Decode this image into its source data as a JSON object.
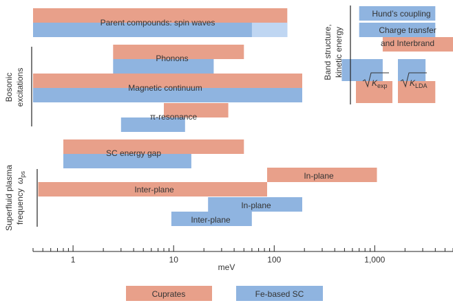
{
  "chart_data": {
    "type": "bar",
    "orientation": "horizontal-range",
    "x_scale": "log",
    "xlabel": "meV",
    "xlim": [
      0.4,
      6000
    ],
    "x_ticks": [
      "1",
      "10",
      "100",
      "1,000"
    ],
    "legend": [
      "Cuprates",
      "Fe-based SC"
    ],
    "colors": {
      "cuprates": "#E8A08A",
      "fe": "#8FB4E0",
      "fe_light": "#BFD6F2"
    },
    "group_labels": {
      "bosonic": "Bosonic\nexcitations",
      "plasma": "Superfluid plasma\nfrequency",
      "band": "Band structure,\nkinetic energy"
    },
    "bars": [
      {
        "label": "Parent compounds: spin waves",
        "series": "Cuprates",
        "x": [
          0.4,
          135
        ]
      },
      {
        "label": "Parent compounds: spin waves",
        "series": "Fe-based SC",
        "x": [
          0.4,
          135
        ],
        "light_from": 60
      },
      {
        "label": "Phonons",
        "series": "Cuprates",
        "x": [
          2.5,
          50
        ]
      },
      {
        "label": "Phonons",
        "series": "Fe-based SC",
        "x": [
          2.5,
          25
        ]
      },
      {
        "label": "Magnetic continuum",
        "series": "Cuprates",
        "x": [
          0.4,
          190
        ]
      },
      {
        "label": "Magnetic continuum",
        "series": "Fe-based SC",
        "x": [
          0.4,
          190
        ]
      },
      {
        "label": "π-resonance",
        "series": "Cuprates",
        "x": [
          8,
          35
        ]
      },
      {
        "label": "π-resonance",
        "series": "Fe-based SC",
        "x": [
          3,
          13
        ]
      },
      {
        "label": "SC energy gap",
        "series": "Cuprates",
        "x": [
          0.8,
          50
        ]
      },
      {
        "label": "SC energy gap",
        "series": "Fe-based SC",
        "x": [
          0.8,
          15
        ]
      },
      {
        "label": "In-plane",
        "series": "Cuprates",
        "x": [
          85,
          1050
        ]
      },
      {
        "label": "Inter-plane",
        "series": "Cuprates",
        "x": [
          0.45,
          85
        ]
      },
      {
        "label": "In-plane",
        "series": "Fe-based SC",
        "x": [
          22,
          190
        ]
      },
      {
        "label": "Inter-plane",
        "series": "Fe-based SC",
        "x": [
          9.5,
          60
        ]
      },
      {
        "label": "Hund’s coupling",
        "series": "Fe-based SC",
        "x": [
          700,
          4000
        ]
      },
      {
        "label": "Charge transfer\nand Interbrand",
        "series": "Fe-based SC",
        "x": [
          700,
          4000
        ]
      },
      {
        "label": "Charge transfer\nand Interbrand",
        "series": "Cuprates",
        "x": [
          1200,
          6000
        ]
      },
      {
        "label": "K_exp",
        "series": "Fe-based SC",
        "x": [
          470,
          1200
        ]
      },
      {
        "label": "K_exp",
        "series": "Cuprates",
        "x": [
          650,
          1500
        ]
      },
      {
        "label": "K_LDA",
        "series": "Fe-based SC",
        "x": [
          1700,
          3200
        ]
      },
      {
        "label": "K_LDA",
        "series": "Cuprates",
        "x": [
          1700,
          4000
        ]
      }
    ]
  }
}
